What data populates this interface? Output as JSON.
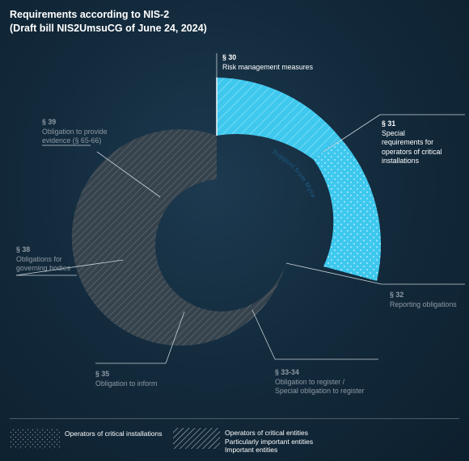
{
  "title": {
    "line1": "Requirements according to NIS-2",
    "line2": "(Draft bill NIS2UmsuCG of June 24, 2024)"
  },
  "arc_label": "Support from Myra",
  "sections": {
    "s30": {
      "number": "§ 30",
      "text": [
        "Risk management measures"
      ]
    },
    "s31": {
      "number": "§ 31",
      "text": [
        "Special",
        "requirements for",
        "operators of critical",
        "installations"
      ]
    },
    "s32": {
      "number": "§ 32",
      "text": [
        "Reporting obligations"
      ]
    },
    "s3334": {
      "number": "§ 33-34",
      "text": [
        "Obligation to register /",
        "Special obligation to register"
      ]
    },
    "s35": {
      "number": "§ 35",
      "text": [
        "Obligation to inform"
      ]
    },
    "s38": {
      "number": "§ 38",
      "text": [
        "Obligations for",
        "governing bodies"
      ]
    },
    "s39": {
      "number": "§ 39",
      "text": [
        "Obligation to provide",
        "evidence (§ 65-66)"
      ]
    }
  },
  "legend": {
    "dotted": {
      "lines": [
        "Operators of critical installations"
      ]
    },
    "hatched": {
      "lines": [
        "Operators of critical entities",
        "Particularly important entities",
        "Important entities"
      ]
    }
  },
  "colors": {
    "highlight": "#3ec8ee",
    "ring": "#36434d",
    "background": "#132b3d"
  }
}
